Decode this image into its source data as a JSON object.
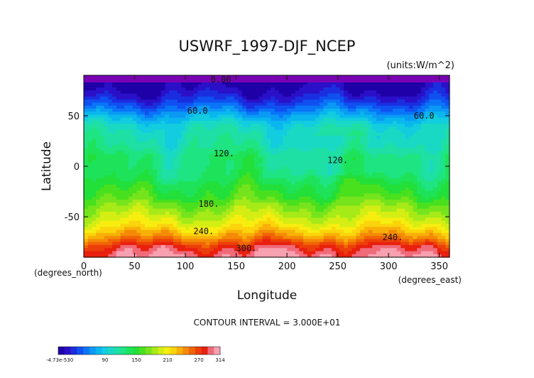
{
  "chart_data": {
    "type": "heatmap",
    "title": "USWRF_1997-DJF_NCEP",
    "units": "(units:W/m^2)",
    "xlabel": "Longitude",
    "ylabel": "Latitude",
    "x_unit_note": "(degrees_east)",
    "y_unit_note": "(degrees_north)",
    "xlim": [
      0,
      360
    ],
    "ylim": [
      -90,
      90
    ],
    "x_ticks": [
      0,
      50,
      100,
      150,
      200,
      250,
      300,
      350
    ],
    "y_ticks": [
      50,
      0,
      -50
    ],
    "contour_interval_text": "CONTOUR INTERVAL = 3.000E+01",
    "contour_labels": [
      {
        "text": "0.00",
        "lon": 135,
        "lat": 83
      },
      {
        "text": "60.0",
        "lon": 112,
        "lat": 52
      },
      {
        "text": "60.0",
        "lon": 335,
        "lat": 47
      },
      {
        "text": "120.",
        "lon": 138,
        "lat": 10
      },
      {
        "text": "120.",
        "lon": 250,
        "lat": 3
      },
      {
        "text": "180.",
        "lon": 123,
        "lat": -40
      },
      {
        "text": "240.",
        "lon": 118,
        "lat": -67
      },
      {
        "text": "240.",
        "lon": 304,
        "lat": -73
      },
      {
        "text": "300.",
        "lon": 160,
        "lat": -84
      }
    ],
    "latitudinal_profile": [
      {
        "lat": 90,
        "value": 5
      },
      {
        "lat": 80,
        "value": 5
      },
      {
        "lat": 70,
        "value": 20
      },
      {
        "lat": 60,
        "value": 45
      },
      {
        "lat": 50,
        "value": 75
      },
      {
        "lat": 40,
        "value": 100
      },
      {
        "lat": 30,
        "value": 110
      },
      {
        "lat": 20,
        "value": 115
      },
      {
        "lat": 10,
        "value": 130
      },
      {
        "lat": 0,
        "value": 130
      },
      {
        "lat": -10,
        "value": 135
      },
      {
        "lat": -20,
        "value": 150
      },
      {
        "lat": -30,
        "value": 160
      },
      {
        "lat": -40,
        "value": 180
      },
      {
        "lat": -50,
        "value": 195
      },
      {
        "lat": -60,
        "value": 215
      },
      {
        "lat": -70,
        "value": 245
      },
      {
        "lat": -80,
        "value": 285
      },
      {
        "lat": -90,
        "value": 305
      }
    ],
    "colorbar": {
      "tick_labels": [
        "-4.73e-530",
        "90",
        "150",
        "210",
        "270",
        "314"
      ],
      "colors": [
        "#1f00a8",
        "#2a10c8",
        "#1a2ee0",
        "#1050f0",
        "#0a74f8",
        "#0a9af4",
        "#0ab6ee",
        "#12ccdf",
        "#1ad9c4",
        "#1edfa4",
        "#1ee482",
        "#1ee35a",
        "#22df3a",
        "#49e01e",
        "#76e41c",
        "#a6ea18",
        "#d4ee14",
        "#f7ee10",
        "#fbd40c",
        "#f8b008",
        "#f48a06",
        "#f06406",
        "#ec3e0a",
        "#e8200e",
        "#f06a7a",
        "#f6a0b0"
      ]
    }
  }
}
